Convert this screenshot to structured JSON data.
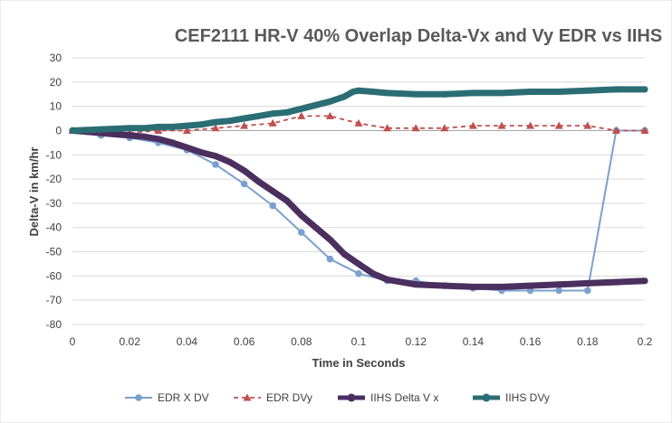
{
  "chart_data": {
    "type": "line",
    "title": "CEF2111 HR-V 40% Overlap Delta-Vx and Vy EDR vs IIHS",
    "xlabel": "Time in Seconds",
    "ylabel": "Delta-V in km/hr",
    "xlim": [
      0,
      0.2
    ],
    "ylim": [
      -80,
      30
    ],
    "x_ticks": [
      "0",
      "0.02",
      "0.04",
      "0.06",
      "0.08",
      "0.1",
      "0.12",
      "0.14",
      "0.16",
      "0.18",
      "0.2"
    ],
    "y_ticks": [
      "30",
      "20",
      "10",
      "0",
      "-10",
      "-20",
      "-30",
      "-40",
      "-50",
      "-60",
      "-70",
      "-80"
    ],
    "grid": "horizontal",
    "legend": "bottom",
    "series": [
      {
        "name": "EDR X DV",
        "color": "#7ba0d0",
        "style": "solid-circle-markers",
        "x": [
          0,
          0.01,
          0.02,
          0.03,
          0.04,
          0.05,
          0.06,
          0.07,
          0.08,
          0.09,
          0.1,
          0.11,
          0.12,
          0.13,
          0.14,
          0.15,
          0.16,
          0.17,
          0.18,
          0.19,
          0.2
        ],
        "y": [
          0,
          -2,
          -3,
          -5,
          -8,
          -14,
          -22,
          -31,
          -42,
          -53,
          -59,
          -62,
          -62,
          -64,
          -65,
          -66,
          -66,
          -66,
          -66,
          0,
          0
        ]
      },
      {
        "name": "EDR DVy",
        "color": "#c0504d",
        "style": "dashed-triangle-markers",
        "x": [
          0,
          0.01,
          0.02,
          0.03,
          0.04,
          0.05,
          0.06,
          0.07,
          0.08,
          0.09,
          0.1,
          0.11,
          0.12,
          0.13,
          0.14,
          0.15,
          0.16,
          0.17,
          0.18,
          0.19,
          0.2
        ],
        "y": [
          0,
          -1,
          -1,
          0,
          0,
          1,
          2,
          3,
          6,
          6,
          3,
          1,
          1,
          1,
          2,
          2,
          2,
          2,
          2,
          0,
          0
        ]
      },
      {
        "name": "IIHS Delta V x",
        "color": "#4b2f5f",
        "style": "thick-line",
        "x": [
          0,
          0.005,
          0.01,
          0.015,
          0.02,
          0.025,
          0.03,
          0.035,
          0.04,
          0.045,
          0.05,
          0.055,
          0.06,
          0.065,
          0.07,
          0.075,
          0.08,
          0.085,
          0.09,
          0.095,
          0.1,
          0.105,
          0.11,
          0.115,
          0.12,
          0.13,
          0.14,
          0.15,
          0.16,
          0.17,
          0.18,
          0.19,
          0.2
        ],
        "y": [
          0,
          -0.5,
          -1,
          -1.5,
          -2,
          -2.5,
          -3.5,
          -5,
          -7,
          -9,
          -10.5,
          -13,
          -16.5,
          -21,
          -25,
          -29,
          -35,
          -40,
          -45,
          -51,
          -55,
          -59,
          -61.5,
          -62.5,
          -63.5,
          -64,
          -64.5,
          -64.5,
          -64,
          -63.5,
          -63,
          -62.5,
          -62
        ]
      },
      {
        "name": "IIHS DVy",
        "color": "#2a6e74",
        "style": "thick-line",
        "x": [
          0,
          0.01,
          0.02,
          0.025,
          0.03,
          0.035,
          0.04,
          0.045,
          0.05,
          0.055,
          0.06,
          0.065,
          0.07,
          0.075,
          0.08,
          0.085,
          0.09,
          0.095,
          0.098,
          0.1,
          0.105,
          0.11,
          0.12,
          0.13,
          0.14,
          0.15,
          0.16,
          0.17,
          0.18,
          0.19,
          0.2
        ],
        "y": [
          0,
          0.5,
          1,
          1,
          1.5,
          1.5,
          2,
          2.5,
          3.5,
          4,
          5,
          6,
          7,
          7.5,
          9,
          10.5,
          12,
          14,
          16,
          16.5,
          16,
          15.5,
          15,
          15,
          15.5,
          15.5,
          16,
          16,
          16.5,
          17,
          17
        ]
      }
    ]
  }
}
